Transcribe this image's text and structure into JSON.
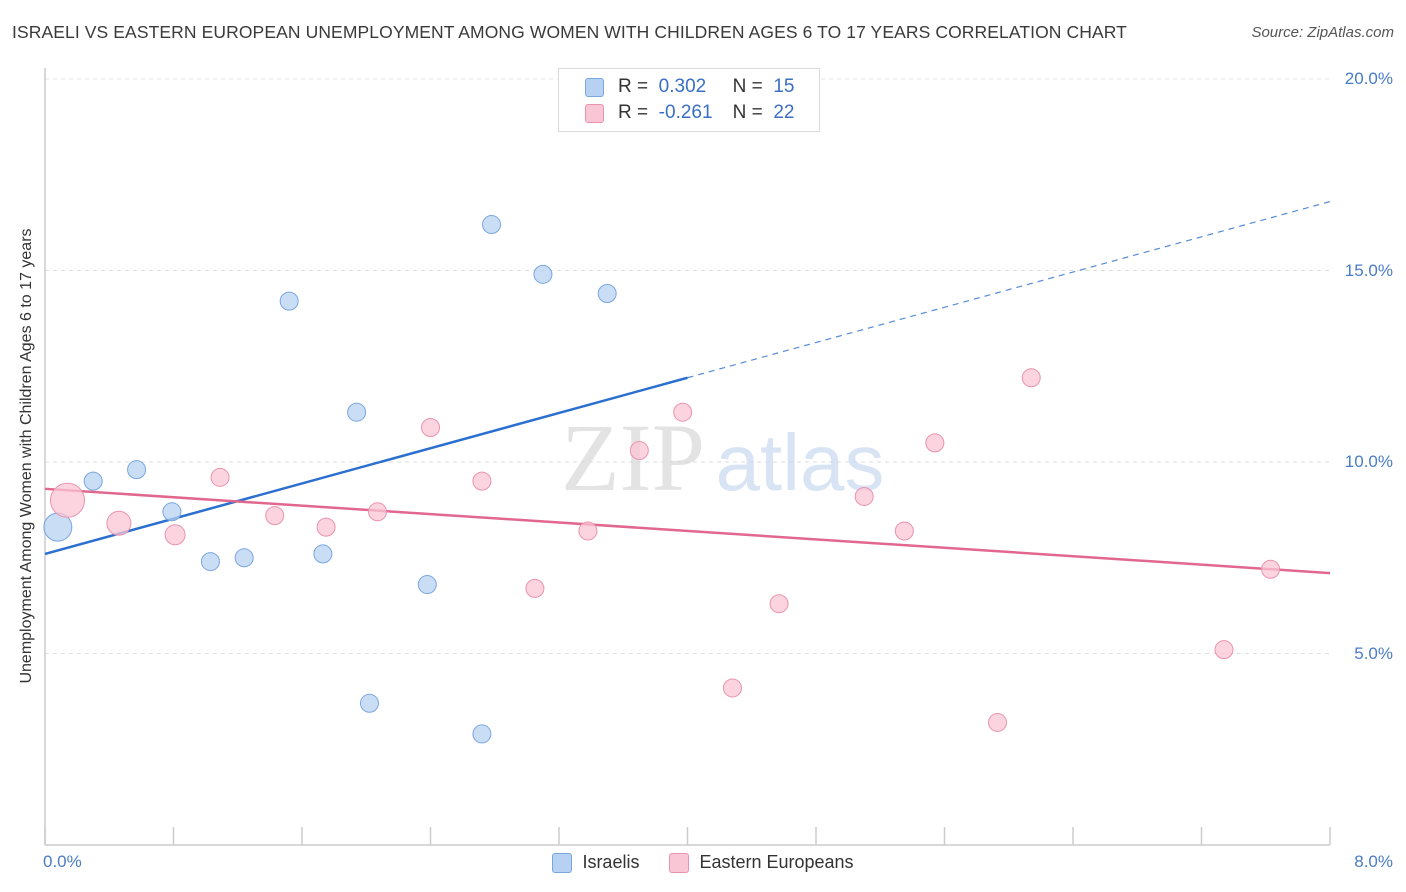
{
  "title": "ISRAELI VS EASTERN EUROPEAN UNEMPLOYMENT AMONG WOMEN WITH CHILDREN AGES 6 TO 17 YEARS CORRELATION CHART",
  "source": "Source: ZipAtlas.com",
  "watermark": {
    "zip": "ZIP",
    "atlas": "atlas"
  },
  "legend": {
    "rows": [
      {
        "r_label": "R =",
        "r_value": "0.302",
        "n_label": "N =",
        "n_value": "15",
        "color": "#b7d1f2",
        "border": "#7aa6e0"
      },
      {
        "r_label": "R =",
        "r_value": "-0.261",
        "n_label": "N =",
        "n_value": "22",
        "color": "#f9c6d5",
        "border": "#ea93ad"
      }
    ]
  },
  "bottom_legend": {
    "israelis": "Israelis",
    "eastern_europeans": "Eastern Europeans"
  },
  "chart_data": {
    "type": "scatter",
    "title": "ISRAELI VS EASTERN EUROPEAN UNEMPLOYMENT AMONG WOMEN WITH CHILDREN AGES 6 TO 17 YEARS CORRELATION CHART",
    "xlabel": "",
    "ylabel": "Unemployment Among Women with Children Ages 6 to 17 years",
    "xlim": [
      0,
      8
    ],
    "ylim": [
      0,
      20
    ],
    "x_tick_labels": {
      "left": "0.0%",
      "right": "8.0%"
    },
    "y_ticks": [
      {
        "value": 5,
        "label": "5.0%"
      },
      {
        "value": 10,
        "label": "10.0%"
      },
      {
        "value": 15,
        "label": "15.0%"
      },
      {
        "value": 20,
        "label": "20.0%"
      }
    ],
    "grid": "horizontal dashed",
    "legend_position": "top-center",
    "series": [
      {
        "name": "Israelis",
        "color": "#b7d1f2",
        "stroke": "#7aa6e0",
        "line_color": "#2b6fd0",
        "trend": {
          "x0": 0,
          "y0": 7.6,
          "x1": 4.0,
          "y1": 12.2,
          "x_dash_end": 8.0,
          "y_dash_end": 16.8
        },
        "points": [
          {
            "x": 0.08,
            "y": 8.3,
            "r": 14
          },
          {
            "x": 0.3,
            "y": 9.5,
            "r": 9
          },
          {
            "x": 0.57,
            "y": 9.8,
            "r": 9
          },
          {
            "x": 0.79,
            "y": 8.7,
            "r": 9
          },
          {
            "x": 1.03,
            "y": 7.4,
            "r": 9
          },
          {
            "x": 1.24,
            "y": 7.5,
            "r": 9
          },
          {
            "x": 1.52,
            "y": 14.2,
            "r": 9
          },
          {
            "x": 1.73,
            "y": 7.6,
            "r": 9
          },
          {
            "x": 1.94,
            "y": 11.3,
            "r": 9
          },
          {
            "x": 2.02,
            "y": 3.7,
            "r": 9
          },
          {
            "x": 2.38,
            "y": 6.8,
            "r": 9
          },
          {
            "x": 2.72,
            "y": 2.9,
            "r": 9
          },
          {
            "x": 2.78,
            "y": 16.2,
            "r": 9
          },
          {
            "x": 3.1,
            "y": 14.9,
            "r": 9
          },
          {
            "x": 3.5,
            "y": 14.4,
            "r": 9
          }
        ]
      },
      {
        "name": "Eastern Europeans",
        "color": "#f9c6d5",
        "stroke": "#ea93ad",
        "line_color": "#e2678f",
        "trend": {
          "x0": 0,
          "y0": 9.3,
          "x1": 8.0,
          "y1": 7.1
        },
        "points": [
          {
            "x": 0.14,
            "y": 9.0,
            "r": 17
          },
          {
            "x": 0.46,
            "y": 8.4,
            "r": 12
          },
          {
            "x": 0.81,
            "y": 8.1,
            "r": 10
          },
          {
            "x": 1.09,
            "y": 9.6,
            "r": 9
          },
          {
            "x": 1.43,
            "y": 8.6,
            "r": 9
          },
          {
            "x": 1.75,
            "y": 8.3,
            "r": 9
          },
          {
            "x": 2.07,
            "y": 8.7,
            "r": 9
          },
          {
            "x": 2.4,
            "y": 10.9,
            "r": 9
          },
          {
            "x": 2.72,
            "y": 9.5,
            "r": 9
          },
          {
            "x": 3.05,
            "y": 6.7,
            "r": 9
          },
          {
            "x": 3.38,
            "y": 8.2,
            "r": 9
          },
          {
            "x": 3.7,
            "y": 10.3,
            "r": 9
          },
          {
            "x": 3.97,
            "y": 11.3,
            "r": 9
          },
          {
            "x": 4.28,
            "y": 4.1,
            "r": 9
          },
          {
            "x": 4.57,
            "y": 6.3,
            "r": 9
          },
          {
            "x": 5.1,
            "y": 9.1,
            "r": 9
          },
          {
            "x": 5.35,
            "y": 8.2,
            "r": 9
          },
          {
            "x": 5.54,
            "y": 10.5,
            "r": 9
          },
          {
            "x": 5.93,
            "y": 3.2,
            "r": 9
          },
          {
            "x": 6.14,
            "y": 12.2,
            "r": 9
          },
          {
            "x": 7.34,
            "y": 5.1,
            "r": 9
          },
          {
            "x": 7.63,
            "y": 7.2,
            "r": 9
          }
        ]
      }
    ]
  }
}
